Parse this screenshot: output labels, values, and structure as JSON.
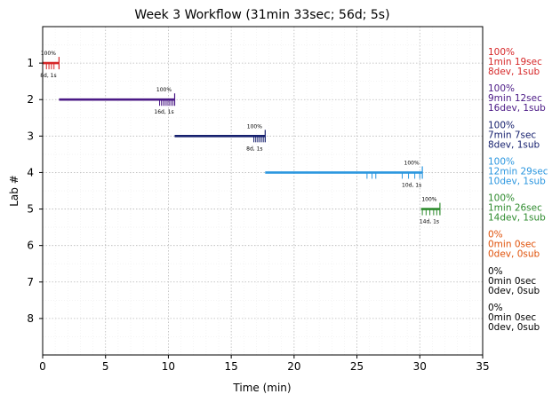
{
  "chart_data": {
    "type": "timeline",
    "title": "Week 3 Workflow (31min 33sec; 56d; 5s)",
    "xlabel": "Time (min)",
    "ylabel": "Lab #",
    "xlim": [
      0,
      35
    ],
    "ylim": [
      0,
      9
    ],
    "y_inverted": true,
    "grid": true,
    "x_ticks": [
      0,
      5,
      10,
      15,
      20,
      25,
      30,
      35
    ],
    "y_ticks": [
      1,
      2,
      3,
      4,
      5,
      6,
      7,
      8
    ],
    "labs": [
      {
        "lab": 1,
        "start": 0.0,
        "end": 1.3,
        "percent": "100%",
        "duration": "1min 19sec",
        "counts": "8dev, 1sub",
        "bar_label": "8d, 1s",
        "color": "#d62728",
        "dev_ticks": [
          0.3,
          0.5,
          0.7,
          0.9
        ],
        "sub_ticks": [
          1.3
        ]
      },
      {
        "lab": 2,
        "start": 1.3,
        "end": 10.5,
        "percent": "100%",
        "duration": "9min 12sec",
        "counts": "16dev, 1sub",
        "bar_label": "16d, 1s",
        "color": "#4b1a86",
        "dev_ticks": [
          9.3,
          9.45,
          9.6,
          9.75,
          9.9,
          10.05,
          10.2,
          10.35
        ],
        "sub_ticks": [
          10.5
        ]
      },
      {
        "lab": 3,
        "start": 10.5,
        "end": 17.7,
        "percent": "100%",
        "duration": "7min 7sec",
        "counts": "8dev, 1sub",
        "bar_label": "8d, 1s",
        "color": "#16206e",
        "dev_ticks": [
          16.8,
          16.95,
          17.1,
          17.25,
          17.4,
          17.55
        ],
        "sub_ticks": [
          17.7
        ]
      },
      {
        "lab": 4,
        "start": 17.7,
        "end": 30.2,
        "percent": "100%",
        "duration": "12min 29sec",
        "counts": "10dev, 1sub",
        "bar_label": "10d, 1s",
        "color": "#2a96df",
        "dev_ticks": [
          25.8,
          26.2,
          26.5,
          28.6,
          29.1,
          29.6,
          30.0
        ],
        "sub_ticks": [
          30.2
        ]
      },
      {
        "lab": 5,
        "start": 30.1,
        "end": 31.6,
        "percent": "100%",
        "duration": "1min 26sec",
        "counts": "14dev, 1sub",
        "bar_label": "14d, 1s",
        "color": "#2e8b2e",
        "dev_ticks": [
          30.2,
          30.5,
          30.8,
          31.1,
          31.35
        ],
        "sub_ticks": [
          31.6
        ]
      },
      {
        "lab": 6,
        "percent": "0%",
        "duration": "0min 0sec",
        "counts": "0dev, 0sub",
        "color": "#e0520a"
      },
      {
        "lab": 7,
        "percent": "0%",
        "duration": "0min 0sec",
        "counts": "0dev, 0sub",
        "color": "#000000"
      },
      {
        "lab": 8,
        "percent": "0%",
        "duration": "0min 0sec",
        "counts": "0dev, 0sub",
        "color": "#000000"
      }
    ]
  }
}
